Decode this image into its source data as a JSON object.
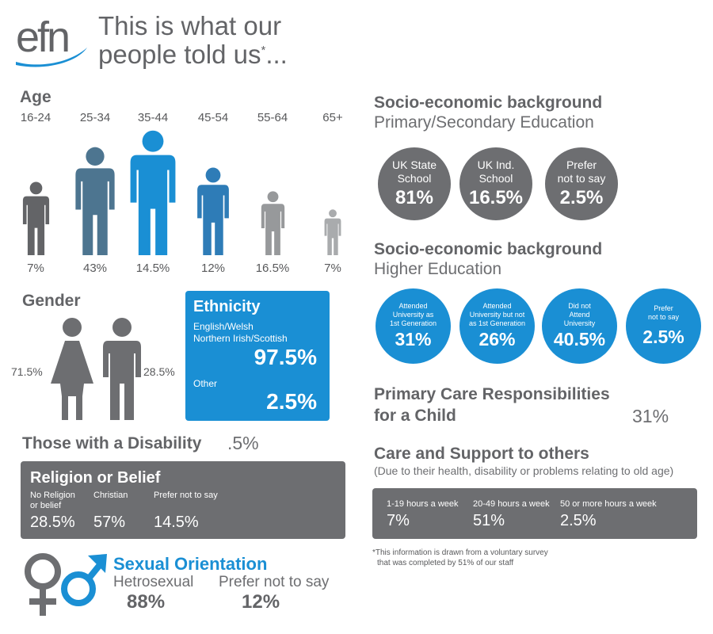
{
  "header": {
    "logo": "efn",
    "title_line1": "This is what our",
    "title_line2": "people told us",
    "title_star": "*",
    "title_ellipsis": "...",
    "brand_color": "#1a8fd4"
  },
  "age": {
    "title": "Age",
    "groups": [
      {
        "label": "16-24",
        "pct": "7%",
        "level": 0.59,
        "color": "#636467"
      },
      {
        "label": "25-34",
        "pct": "43%",
        "level": 0.87,
        "color": "#4d7590"
      },
      {
        "label": "35-44",
        "pct": "14.5%",
        "level": 1.0,
        "color": "#1a8fd4"
      },
      {
        "label": "45-54",
        "pct": "12%",
        "level": 0.7,
        "color": "#2e7cb7"
      },
      {
        "label": "55-64",
        "pct": "16.5%",
        "level": 0.51,
        "color": "#97999b"
      },
      {
        "label": "65+",
        "pct": "7%",
        "level": 0.37,
        "color": "#a9abad"
      }
    ]
  },
  "gender": {
    "title": "Gender",
    "female_pct": "71.5%",
    "male_pct": "28.5%",
    "icon_female": "female-figure-icon",
    "icon_male": "male-figure-icon"
  },
  "ethnicity": {
    "title": "Ethnicity",
    "group1_label_line1": "English/Welsh",
    "group1_label_line2": "Northern Irish/Scottish",
    "group1_value": "97.5%",
    "group2_label": "Other",
    "group2_value": "2.5%"
  },
  "disability": {
    "title": "Those with a Disability",
    "value": ".5%"
  },
  "religion": {
    "title": "Religion or Belief",
    "items": [
      {
        "label_line1": "No Religion",
        "label_line2": "or belief",
        "value": "28.5%"
      },
      {
        "label_line1": "Christian",
        "label_line2": "",
        "value": "57%"
      },
      {
        "label_line1": "Prefer not to say",
        "label_line2": "",
        "value": "14.5%"
      }
    ]
  },
  "sexual_orientation": {
    "title": "Sexual Orientation",
    "items": [
      {
        "label": "Hetrosexual",
        "value": "88%"
      },
      {
        "label": "Prefer not to say",
        "value": "12%"
      }
    ],
    "icon_female": "female-symbol-icon",
    "icon_male": "male-symbol-icon"
  },
  "socio_primary": {
    "title": "Socio-economic background",
    "subtitle": "Primary/Secondary Education",
    "items": [
      {
        "label_line1": "UK State",
        "label_line2": "School",
        "value": "81%"
      },
      {
        "label_line1": "UK Ind.",
        "label_line2": "School",
        "value": "16.5%"
      },
      {
        "label_line1": "Prefer",
        "label_line2": "not to say",
        "value": "2.5%"
      }
    ]
  },
  "socio_higher": {
    "title": "Socio-economic background",
    "subtitle": "Higher Education",
    "items": [
      {
        "label_line1": "Attended",
        "label_line2": "University as",
        "label_line3": "1st Generation",
        "value": "31%"
      },
      {
        "label_line1": "Attended",
        "label_line2": "University but not",
        "label_line3": "as 1st Generation",
        "value": "26%"
      },
      {
        "label_line1": "Did not",
        "label_line2": "Attend",
        "label_line3": "University",
        "value": "40.5%"
      },
      {
        "label_line1": "Prefer",
        "label_line2": "not to say",
        "label_line3": "",
        "value": "2.5%"
      }
    ]
  },
  "primary_care": {
    "title_line1": "Primary Care Responsibilities",
    "title_line2": "for a Child",
    "value": "31%"
  },
  "care_support": {
    "title": "Care and Support to others",
    "subtitle": "(Due to their health, disability or problems relating to old age)",
    "items": [
      {
        "label": "1-19 hours a week",
        "value": "7%"
      },
      {
        "label": "20-49 hours a week",
        "value": "51%"
      },
      {
        "label": "50 or more hours a week",
        "value": "2.5%"
      }
    ]
  },
  "footnote": {
    "line1": "*This information is drawn from a voluntary survey",
    "line2": "that was completed by 51% of our staff"
  }
}
